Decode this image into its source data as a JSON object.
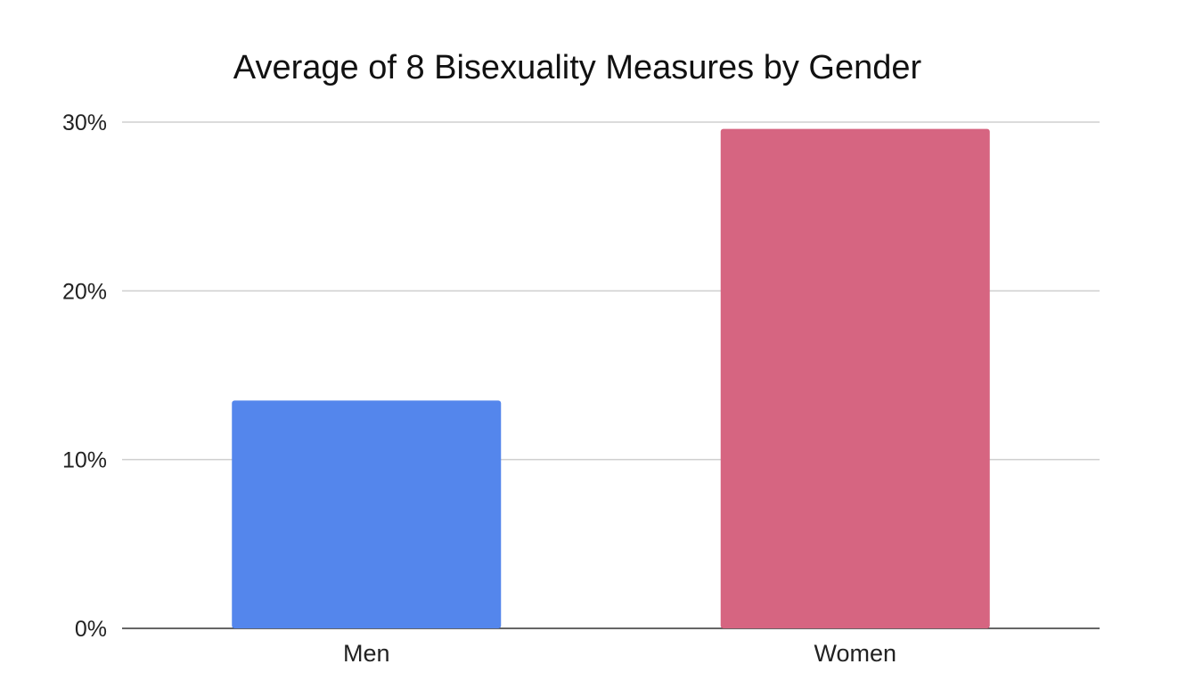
{
  "chart_data": {
    "type": "bar",
    "title": "Average of 8 Bisexuality Measures by Gender",
    "categories": [
      "Men",
      "Women"
    ],
    "values": [
      13.5,
      29.6
    ],
    "value_unit": "%",
    "colors": [
      "#5486ec",
      "#d66581"
    ],
    "xlabel": "",
    "ylabel": "",
    "ylim": [
      0,
      30
    ],
    "yticks": [
      0,
      10,
      20,
      30
    ],
    "ytick_labels": [
      "0%",
      "10%",
      "20%",
      "30%"
    ],
    "grid": true,
    "legend": "none"
  }
}
